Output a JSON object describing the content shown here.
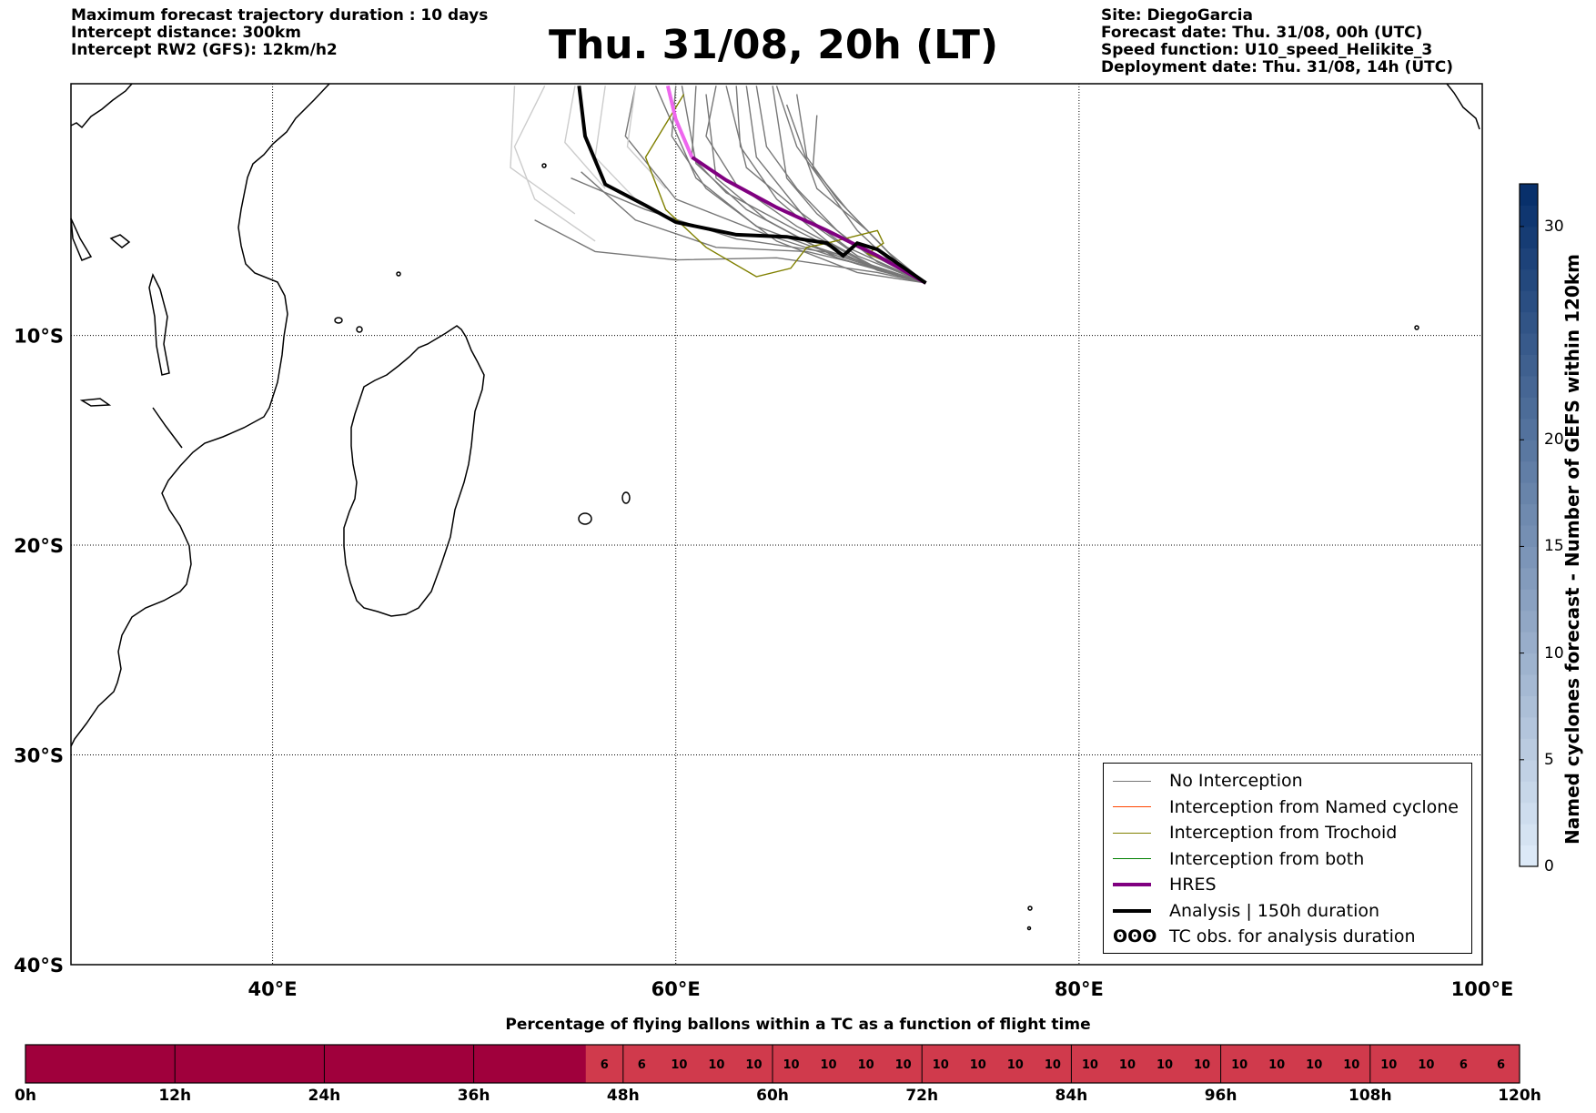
{
  "header": {
    "info_left": [
      "Maximum forecast trajectory duration : 10 days",
      "Intercept distance: 300km",
      "Intercept RW2 (GFS):  12km/h2"
    ],
    "title": "Thu. 31/08, 20h (LT)",
    "info_right": [
      "Site: DiegoGarcia",
      "Forecast date: Thu. 31/08, 00h (UTC)",
      "Speed function: U10_speed_Helikite_3",
      "Deployment date: Thu. 31/08, 14h (UTC)"
    ]
  },
  "map": {
    "lat_labels": [
      "10°S",
      "20°S",
      "30°S",
      "40°S"
    ],
    "lon_labels": [
      "40°E",
      "60°E",
      "80°E",
      "100°E"
    ],
    "lon_range": [
      30,
      100
    ],
    "lat_range": [
      -40,
      2
    ],
    "grid": true
  },
  "legend": {
    "items": [
      {
        "label": "No Interception",
        "color": "#777777",
        "width": 1.5
      },
      {
        "label": "Interception from Named cyclone",
        "color": "#ff4500",
        "width": 1.5
      },
      {
        "label": "Interception from Trochoid",
        "color": "#808000",
        "width": 1.5
      },
      {
        "label": "Interception from both",
        "color": "#008000",
        "width": 1.5
      },
      {
        "label": "HRES",
        "color": "#800080",
        "width": 4
      },
      {
        "label": "Analysis | 150h duration",
        "color": "#000000",
        "width": 4
      },
      {
        "label": "TC obs. for analysis duration",
        "symbol": "ʘʘʘ"
      }
    ]
  },
  "colorbar": {
    "label": "Named cyclones forecast - Number of GEFS within 120km",
    "ticks": [
      0,
      5,
      10,
      15,
      20,
      30
    ],
    "max": 32,
    "color_low": "#dce9f7",
    "color_high": "#08306b"
  },
  "bottom_bar": {
    "title": "Percentage of flying ballons within a TC as a function of flight time",
    "time_labels": [
      "0h",
      "12h",
      "24h",
      "36h",
      "48h",
      "60h",
      "72h",
      "84h",
      "96h",
      "108h",
      "120h"
    ],
    "max_hours": 120,
    "step_hours": 3,
    "values": [
      0,
      0,
      0,
      0,
      0,
      0,
      0,
      0,
      0,
      0,
      0,
      0,
      0,
      0,
      0,
      6,
      6,
      10,
      10,
      10,
      10,
      10,
      10,
      10,
      10,
      10,
      10,
      10,
      10,
      10,
      10,
      10,
      10,
      10,
      10,
      10,
      10,
      10,
      6,
      6
    ],
    "color_zero": "#a0003c",
    "color_nonzero": "#d03a4c"
  }
}
